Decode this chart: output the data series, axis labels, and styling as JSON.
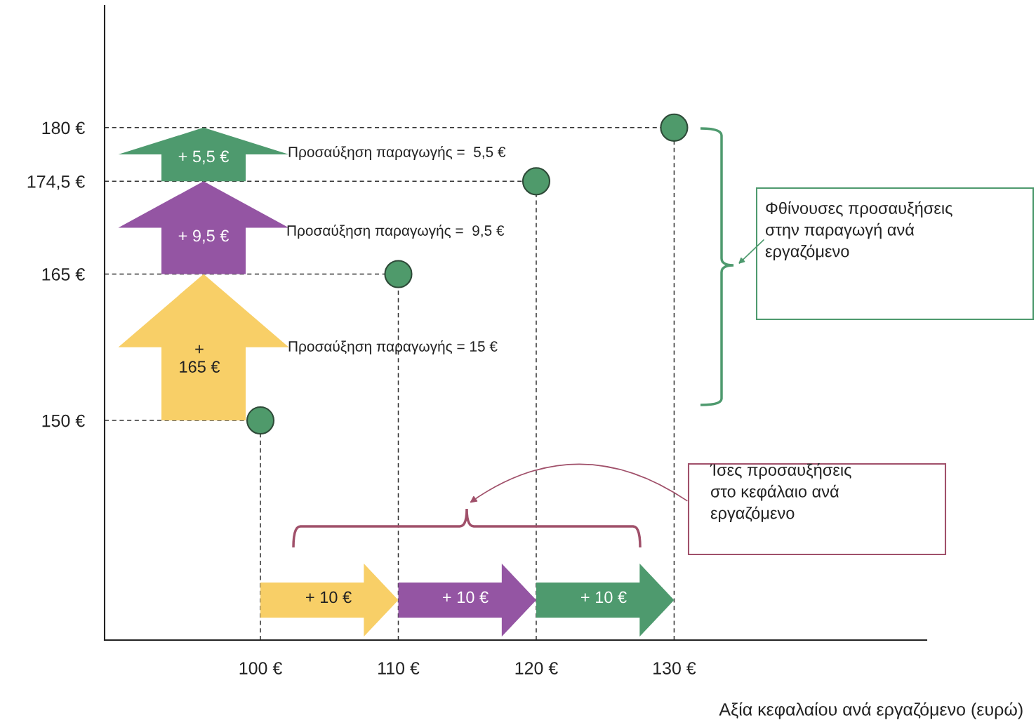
{
  "chart_data": {
    "type": "scatter",
    "x": [
      100,
      110,
      120,
      130
    ],
    "values": [
      150,
      165,
      174.5,
      180
    ],
    "color": "#4f9a6b",
    "marker": "circle",
    "grid": false,
    "ref_lines": [
      {
        "axis": "x",
        "value": 100,
        "label": null,
        "line_style": "dashed"
      },
      {
        "axis": "x",
        "value": 110,
        "label": null,
        "line_style": "dashed"
      },
      {
        "axis": "x",
        "value": 120,
        "label": null,
        "line_style": "dashed"
      },
      {
        "axis": "x",
        "value": 130,
        "label": null,
        "line_style": "dashed"
      },
      {
        "axis": "y",
        "value": 150,
        "label": null,
        "line_style": "dashed"
      },
      {
        "axis": "y",
        "value": 165,
        "label": null,
        "line_style": "dashed"
      },
      {
        "axis": "y",
        "value": 174.5,
        "label": null,
        "line_style": "dashed"
      },
      {
        "axis": "y",
        "value": 180,
        "label": null,
        "line_style": "dashed"
      }
    ],
    "xlabel": "Αξία κεφαλαίου ανά εργαζόμενο (ευρώ)",
    "xlim": [
      88.7,
      148.3
    ],
    "ylim": [
      127.5,
      192.5
    ],
    "xticks": [
      {
        "value": 100,
        "label": "100 €"
      },
      {
        "value": 110,
        "label": "110 €"
      },
      {
        "value": 120,
        "label": "120 €"
      },
      {
        "value": 130,
        "label": "130 €"
      }
    ],
    "yticks": [
      {
        "value": 150,
        "label": "150 €"
      },
      {
        "value": 165,
        "label": "165 €"
      },
      {
        "value": 174.5,
        "label": "174,5 €"
      },
      {
        "value": 180,
        "label": "180 €"
      }
    ],
    "annotations": [
      "Προσαύξηση παραγωγής =  5,5 €",
      "Προσαύξηση παραγωγής =  9,5 €",
      "Προσαύξηση παραγωγής = 15 €",
      "Φθίνουσες προσαυξήσεις\nστην παραγωγή ανά\nεργαζόμενο",
      "Ίσες προσαυξήσεις\nστο κεφάλαιο ανά\nεργαζόμενο",
      "+ 5,5 €",
      "+ 9,5 €",
      "+\n165 €",
      "+ 10 €",
      "+ 10 €",
      "+ 10 €"
    ]
  }
}
